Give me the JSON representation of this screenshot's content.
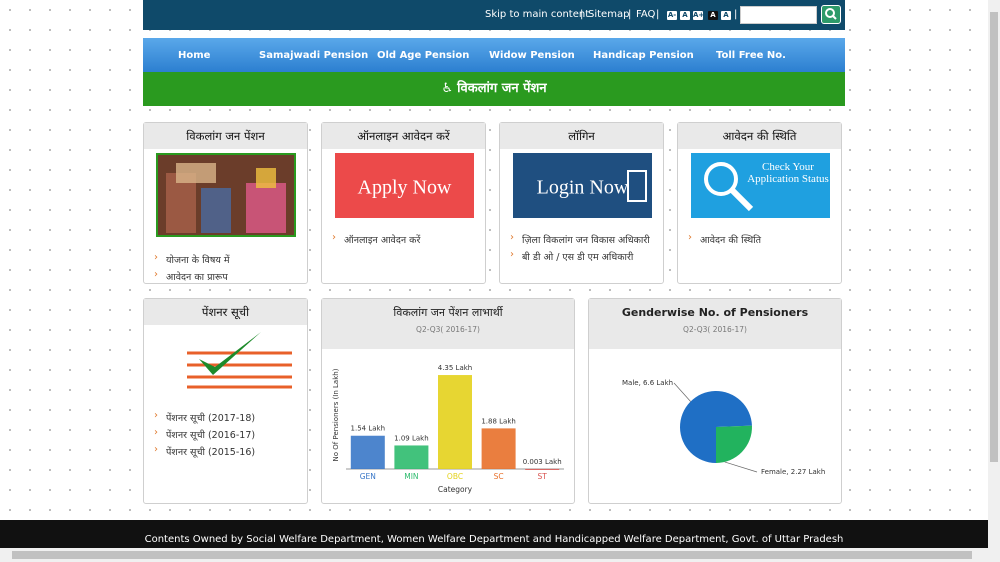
{
  "header": {
    "skip": "Skip to main content",
    "separator": "|",
    "sitemap": "Sitemap",
    "faq": "FAQ",
    "font_sizes": [
      "A-",
      "A",
      "A+",
      "A",
      "A"
    ]
  },
  "nav": [
    "Home",
    "Samajwadi Pension",
    "Old Age Pension",
    "Widow Pension",
    "Handicap Pension",
    "Toll Free No."
  ],
  "banner": "विकलांग जन पेंशन",
  "cards": [
    {
      "title": "विकलांग जन पेंशन",
      "links": [
        "योजना के विषय में",
        "आवेदन का प्रारूप"
      ]
    },
    {
      "title": "ऑनलाइन आवेदन करें",
      "image_text": "Apply Now",
      "links": [
        "ऑनलाइन आवेदन करें"
      ]
    },
    {
      "title": "लॉगिन",
      "image_text": "Login Now",
      "links": [
        "ज़िला विकलांग जन विकास अधिकारी",
        "बी डी ओ / एस डी एम अधिकारी"
      ]
    },
    {
      "title": "आवेदन की स्थिति",
      "image_text": "Check Your Application Status",
      "links": [
        "आवेदन की स्थिति"
      ]
    },
    {
      "title": "पेंशनर सूची",
      "links": [
        "पेंशनर सूची (2017-18)",
        "पेंशनर सूची (2016-17)",
        "पेंशनर सूची (2015-16)"
      ]
    }
  ],
  "chart_data": [
    {
      "type": "bar",
      "title": "विकलांग जन पेंशन लाभार्थी",
      "subtitle": "Q2-Q3( 2016-17)",
      "y_label": "No Of Pensioners (In Lakh)",
      "x_label": "Category",
      "categories": [
        "GEN",
        "MIN",
        "OBC",
        "SC",
        "ST"
      ],
      "values": [
        1.54,
        1.09,
        4.35,
        1.88,
        0.003
      ],
      "value_labels": [
        "1.54 Lakh",
        "1.09 Lakh",
        "4.35 Lakh",
        "1.88 Lakh",
        "0.003 Lakh"
      ],
      "colors": [
        "#3a78c8",
        "#2dbb6e",
        "#e4d21c",
        "#e8702a",
        "#d9534f"
      ],
      "ylim": [
        0,
        5
      ]
    },
    {
      "type": "pie",
      "title": "Genderwise No. of Pensioners",
      "subtitle": "Q2-Q3( 2016-17)",
      "categories": [
        "Male",
        "Female"
      ],
      "values": [
        6.6,
        2.27
      ],
      "value_labels": [
        "Male, 6.6 Lakh",
        "Female, 2.27 Lakh"
      ],
      "colors": [
        "#1f6fc5",
        "#22b35e"
      ]
    }
  ],
  "footer": "Contents Owned by Social Welfare Department, Women Welfare Department and Handicapped Welfare Department, Govt. of Uttar Pradesh"
}
